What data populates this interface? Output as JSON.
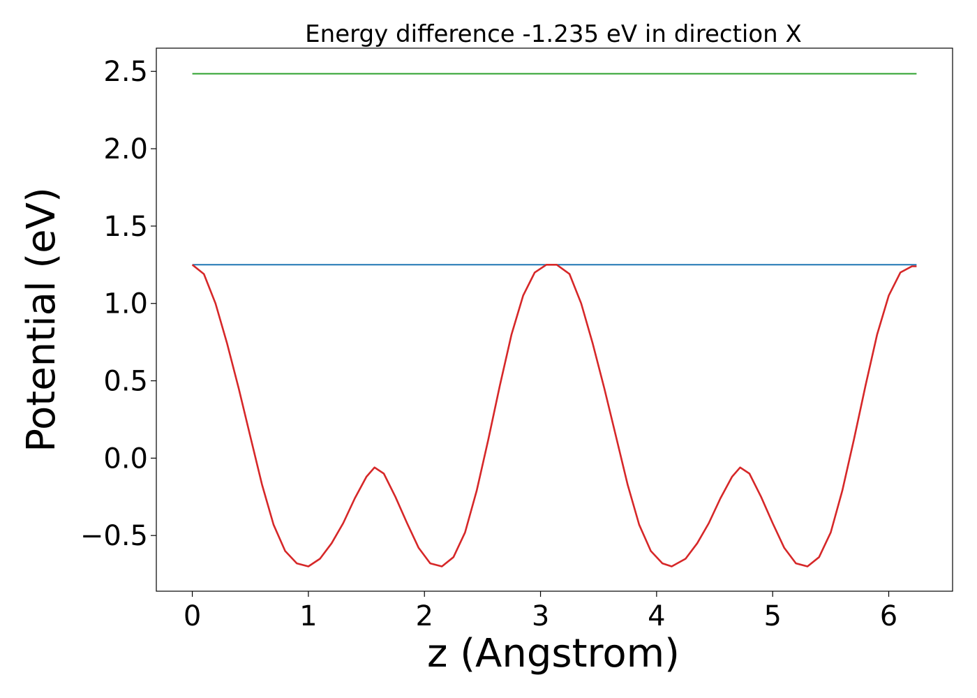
{
  "chart_data": {
    "type": "line",
    "title": "Energy difference -1.235 eV in direction X",
    "xlabel": "z (Angstrom)",
    "ylabel": "Potential (eV)",
    "xlim": [
      -0.31,
      6.55
    ],
    "ylim": [
      -0.86,
      2.65
    ],
    "xticks": [
      0,
      1,
      2,
      3,
      4,
      5,
      6
    ],
    "xtick_labels": [
      "0",
      "1",
      "2",
      "3",
      "4",
      "5",
      "6"
    ],
    "yticks": [
      -0.5,
      0.0,
      0.5,
      1.0,
      1.5,
      2.0,
      2.5
    ],
    "ytick_labels": [
      "−0.5",
      "0.0",
      "0.5",
      "1.0",
      "1.5",
      "2.0",
      "2.5"
    ],
    "grid": false,
    "series": [
      {
        "color": "#2ca02c",
        "x": [
          0,
          6.24
        ],
        "y": [
          2.485,
          2.485
        ]
      },
      {
        "color": "#1f77b4",
        "x": [
          0,
          6.24
        ],
        "y": [
          1.25,
          1.25
        ]
      },
      {
        "color": "#d62728",
        "x": [
          0.0,
          0.1,
          0.2,
          0.3,
          0.4,
          0.5,
          0.6,
          0.7,
          0.8,
          0.9,
          1.0,
          1.1,
          1.2,
          1.3,
          1.4,
          1.5,
          1.57,
          1.65,
          1.75,
          1.85,
          1.95,
          2.05,
          2.15,
          2.25,
          2.35,
          2.45,
          2.55,
          2.65,
          2.75,
          2.85,
          2.95,
          3.05,
          3.14,
          3.25,
          3.35,
          3.45,
          3.55,
          3.65,
          3.75,
          3.85,
          3.95,
          4.05,
          4.13,
          4.25,
          4.35,
          4.45,
          4.55,
          4.65,
          4.72,
          4.8,
          4.9,
          5.0,
          5.1,
          5.2,
          5.3,
          5.4,
          5.5,
          5.6,
          5.7,
          5.8,
          5.9,
          6.0,
          6.1,
          6.2,
          6.24
        ],
        "y": [
          1.25,
          1.19,
          1.0,
          0.74,
          0.45,
          0.14,
          -0.17,
          -0.43,
          -0.6,
          -0.68,
          -0.7,
          -0.65,
          -0.55,
          -0.42,
          -0.26,
          -0.12,
          -0.06,
          -0.1,
          -0.25,
          -0.42,
          -0.58,
          -0.68,
          -0.7,
          -0.64,
          -0.48,
          -0.21,
          0.12,
          0.47,
          0.8,
          1.05,
          1.2,
          1.25,
          1.25,
          1.19,
          1.0,
          0.74,
          0.45,
          0.14,
          -0.17,
          -0.43,
          -0.6,
          -0.68,
          -0.7,
          -0.65,
          -0.55,
          -0.42,
          -0.26,
          -0.12,
          -0.06,
          -0.1,
          -0.25,
          -0.42,
          -0.58,
          -0.68,
          -0.7,
          -0.64,
          -0.48,
          -0.21,
          0.12,
          0.47,
          0.8,
          1.05,
          1.2,
          1.24,
          1.24
        ]
      }
    ]
  }
}
